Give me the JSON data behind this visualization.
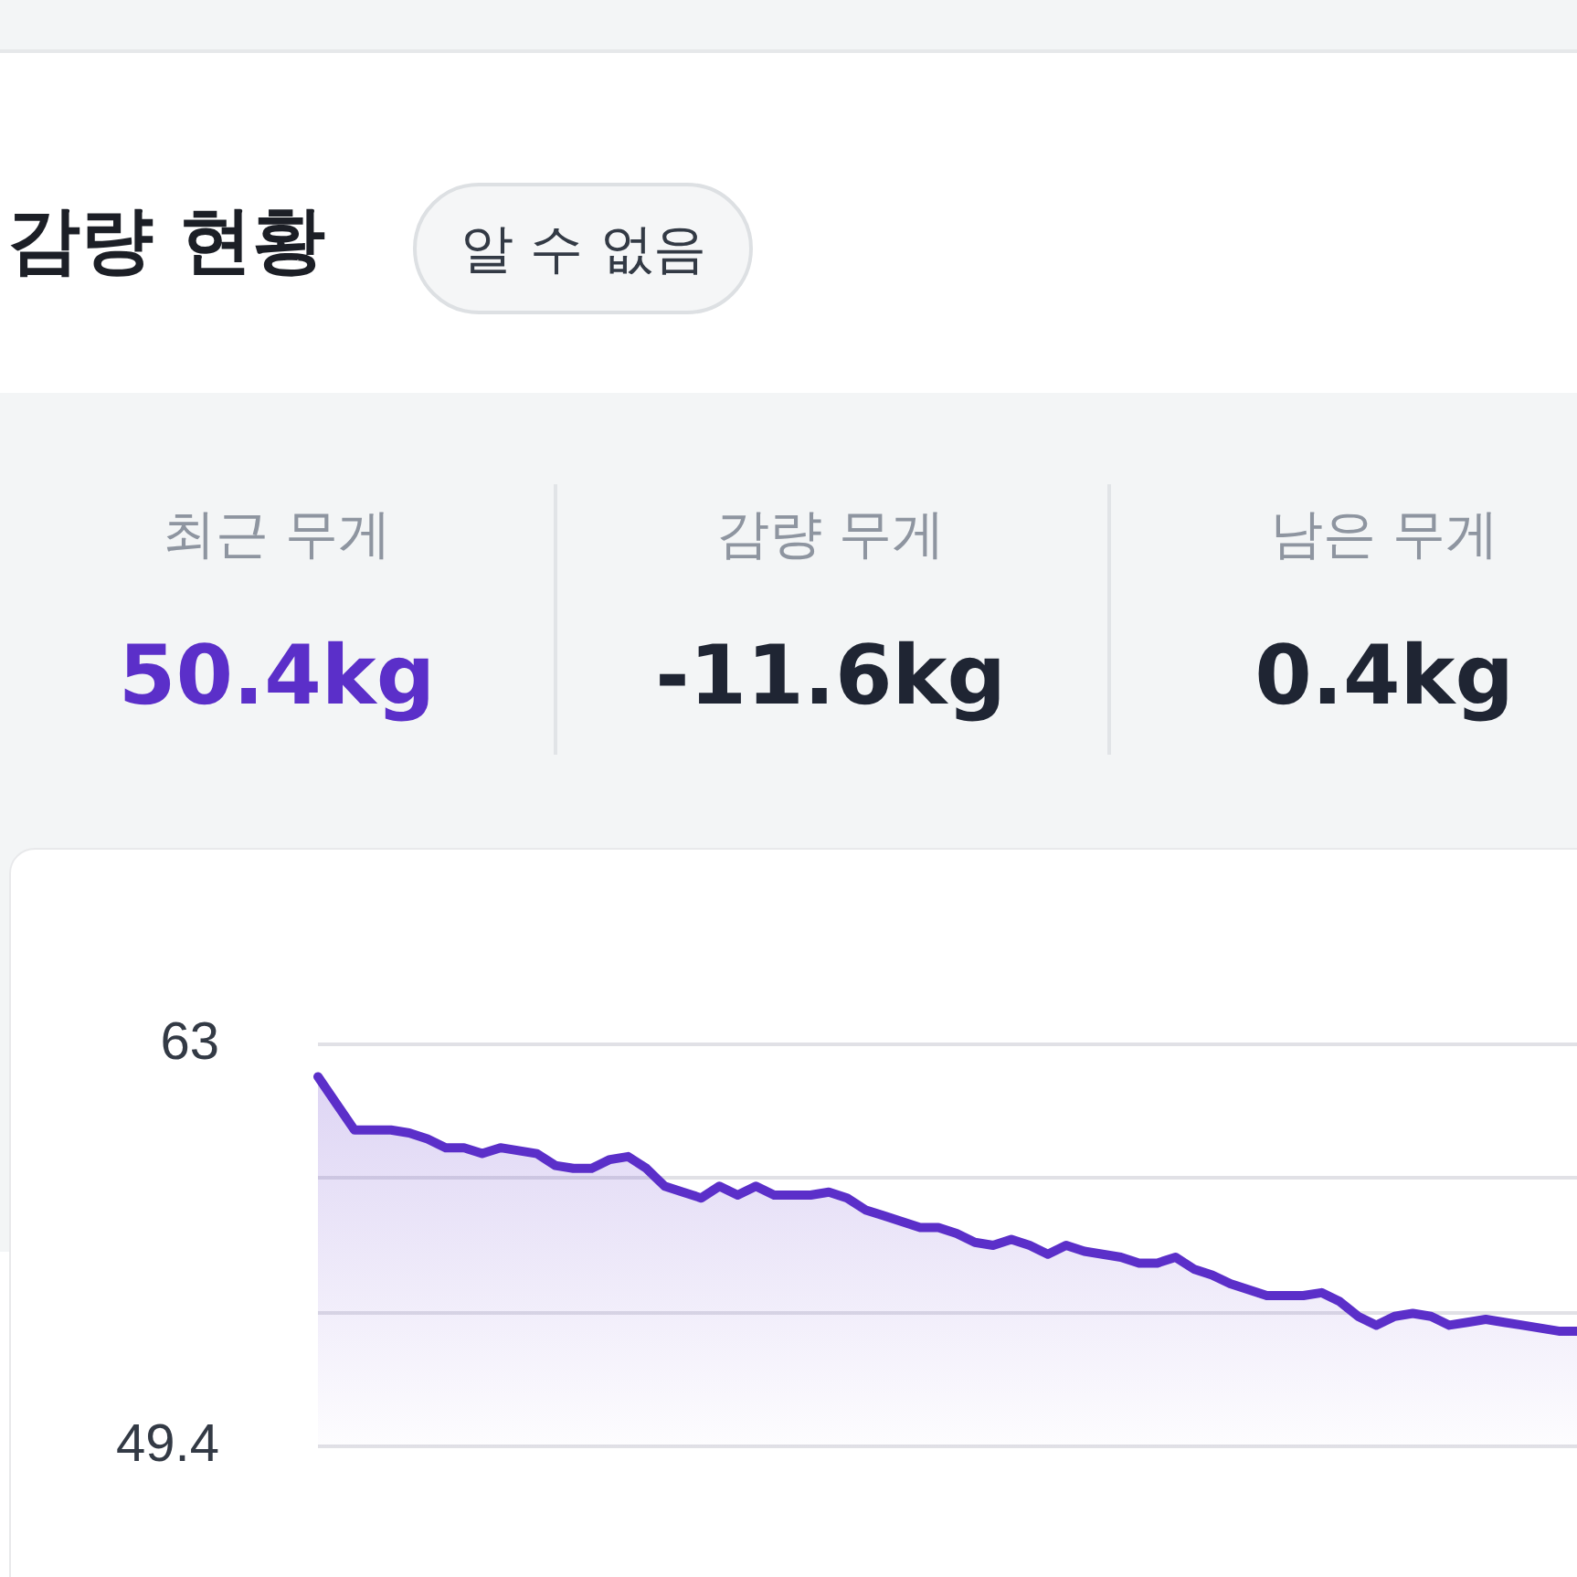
{
  "chart_data": {
    "type": "area",
    "title": "감량 현황",
    "subtitle": "알 수 없음",
    "annotations": [
      "최근 무게",
      "50.4kg",
      "감량 무게",
      "-11.6kg",
      "남은 무게",
      "0.4kg"
    ],
    "categories": [
      null,
      null,
      null,
      null,
      null,
      null,
      null,
      null,
      null,
      null,
      null,
      null,
      null,
      null,
      null,
      null,
      null,
      null,
      null,
      null,
      null,
      null,
      null,
      null,
      null,
      null,
      null,
      null,
      null,
      null,
      null,
      null,
      null,
      null,
      null,
      null,
      null,
      null,
      null,
      null,
      null,
      null,
      null,
      null,
      null,
      null,
      null,
      null,
      null,
      null,
      null,
      null,
      null,
      null,
      null,
      null,
      null,
      null,
      null,
      null,
      null,
      null,
      null,
      null,
      null,
      null,
      null,
      null,
      null,
      null
    ],
    "series": [
      {
        "color": "#5b2fc9",
        "values": [
          61.9,
          61.0,
          60.1,
          60.1,
          60.1,
          60.0,
          59.8,
          59.5,
          59.5,
          59.3,
          59.5,
          59.4,
          59.3,
          58.9,
          58.8,
          58.8,
          59.1,
          59.2,
          58.8,
          58.2,
          58.0,
          57.8,
          58.2,
          57.9,
          58.2,
          57.9,
          57.9,
          57.9,
          58.0,
          57.8,
          57.4,
          57.2,
          57.0,
          56.8,
          56.8,
          56.6,
          56.3,
          56.2,
          56.4,
          56.2,
          55.9,
          56.2,
          56.0,
          55.9,
          55.8,
          55.6,
          55.6,
          55.8,
          55.4,
          55.2,
          54.9,
          54.7,
          54.5,
          54.5,
          54.5,
          54.6,
          54.3,
          53.8,
          53.5,
          53.8,
          53.9,
          53.8,
          53.5,
          53.6,
          53.7,
          53.6,
          53.5,
          53.4,
          53.3,
          53.3
        ]
      }
    ],
    "ylim": [
      49.4,
      63
    ],
    "yticks": [
      63,
      {
        "value": 58.47,
        "label": null
      },
      {
        "value": 53.93,
        "label": null
      },
      49.4
    ],
    "grid": "y",
    "tick_labels": "y",
    "marker": "none"
  }
}
